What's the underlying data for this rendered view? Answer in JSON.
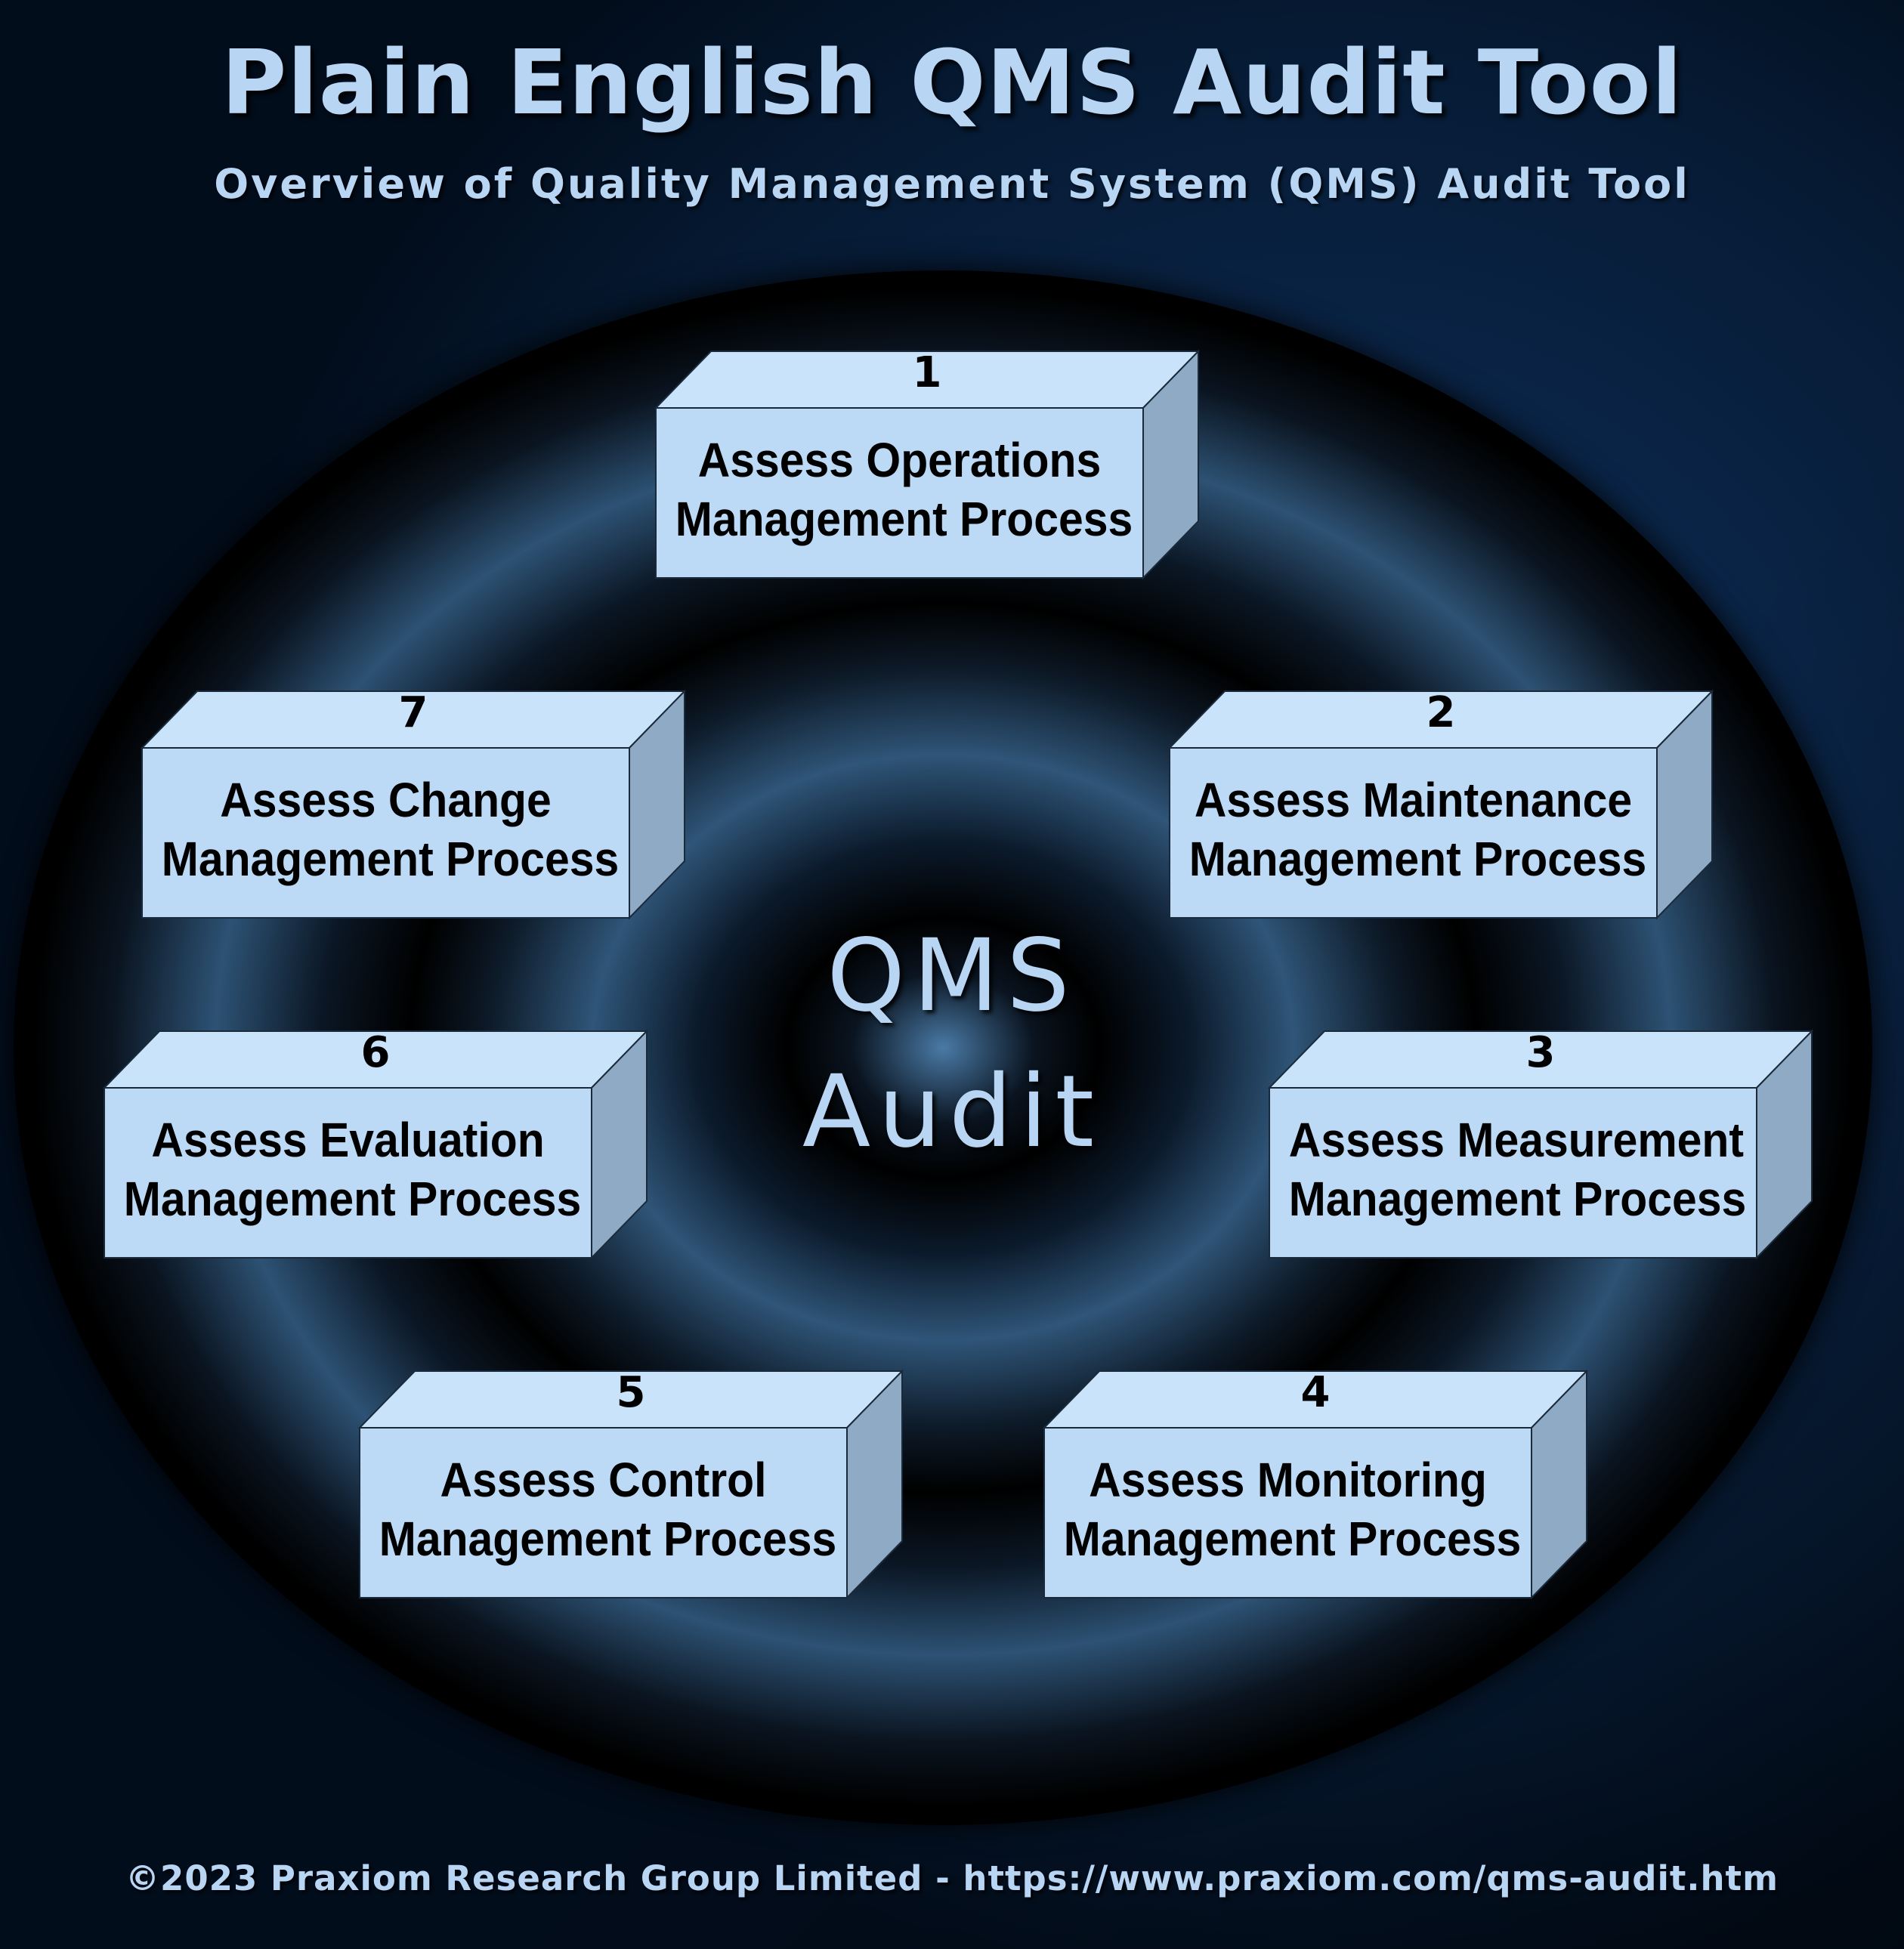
{
  "title": "Plain English QMS Audit Tool",
  "subtitle": "Overview of Quality Management System (QMS) Audit Tool",
  "center": {
    "line1": "QMS",
    "line2": "Audit"
  },
  "boxes": [
    {
      "number": "1",
      "line1": "Assess Operations",
      "line2": "Management Process"
    },
    {
      "number": "2",
      "line1": "Assess Maintenance",
      "line2": "Management Process"
    },
    {
      "number": "3",
      "line1": "Assess Measurement",
      "line2": "Management Process"
    },
    {
      "number": "4",
      "line1": "Assess Monitoring",
      "line2": "Management Process"
    },
    {
      "number": "5",
      "line1": "Assess Control",
      "line2": "Management Process"
    },
    {
      "number": "6",
      "line1": "Assess Evaluation",
      "line2": "Management Process"
    },
    {
      "number": "7",
      "line1": "Assess Change",
      "line2": "Management Process"
    }
  ],
  "footer": "©2023 Praxiom Research Group Limited - https://www.praxiom.com/qms-audit.htm",
  "colors": {
    "background": "#0a2446",
    "text_light": "#b8d6f4",
    "box_front": "#bfdcf7",
    "box_top": "#c9e3fa",
    "box_side": "#8faac5"
  }
}
